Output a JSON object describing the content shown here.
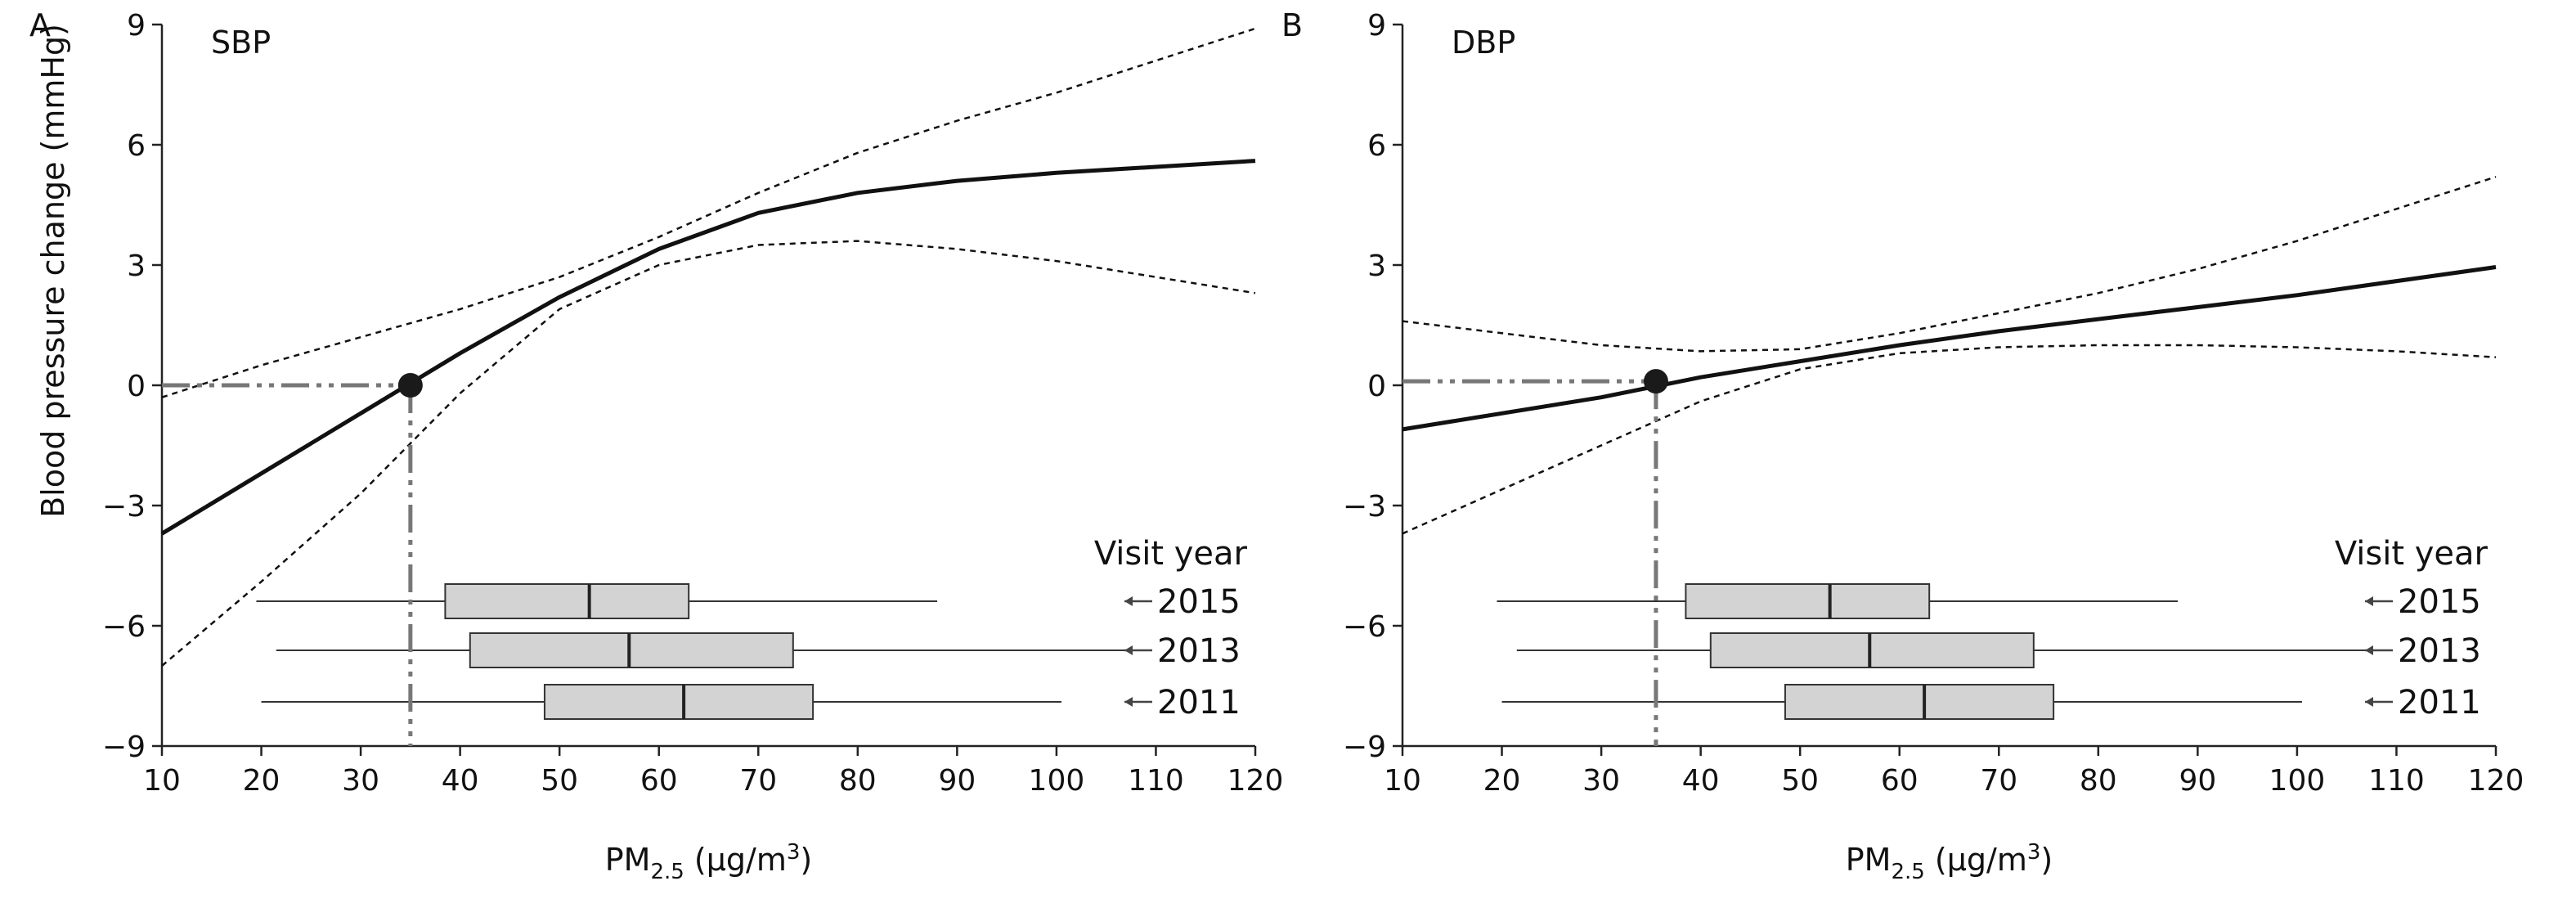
{
  "chart_data": [
    {
      "type": "line",
      "panel_label": "A",
      "title": "SBP",
      "xlabel": "PM",
      "xlabel_sub": "2.5",
      "xlabel_units": " (μg/m",
      "xlabel_sup": "3",
      "xlabel_close": ")",
      "ylabel": "Blood pressure change (mmHg)",
      "xlim": [
        10,
        120
      ],
      "ylim": [
        -9,
        9
      ],
      "x_ticks": [
        10,
        20,
        30,
        40,
        50,
        60,
        70,
        80,
        90,
        100,
        110,
        120
      ],
      "y_ticks": [
        9,
        6,
        3,
        0,
        -3,
        -6,
        -9
      ],
      "series": [
        {
          "role": "estimate",
          "style": "solid",
          "x": [
            10,
            20,
            30,
            40,
            50,
            60,
            70,
            80,
            90,
            100,
            110,
            120
          ],
          "y": [
            -3.7,
            -2.2,
            -0.7,
            0.8,
            2.2,
            3.4,
            4.3,
            4.8,
            5.1,
            5.3,
            5.45,
            5.6
          ]
        },
        {
          "role": "upper_ci",
          "style": "dashed",
          "x": [
            10,
            20,
            30,
            40,
            50,
            60,
            70,
            80,
            90,
            100,
            110,
            120
          ],
          "y": [
            -0.3,
            0.5,
            1.2,
            1.9,
            2.7,
            3.7,
            4.8,
            5.8,
            6.6,
            7.3,
            8.1,
            8.9
          ]
        },
        {
          "role": "lower_ci",
          "style": "dashed",
          "x": [
            10,
            20,
            30,
            40,
            50,
            60,
            70,
            80,
            90,
            100,
            110,
            120
          ],
          "y": [
            -7.0,
            -4.9,
            -2.7,
            -0.2,
            1.9,
            3.0,
            3.5,
            3.6,
            3.4,
            3.1,
            2.7,
            2.3
          ]
        }
      ],
      "reference_point": {
        "x": 35,
        "y": 0
      },
      "boxplot_legend_title": "Visit year",
      "boxplots": [
        {
          "year": "2015",
          "min": 19.5,
          "q1": 38.5,
          "median": 53,
          "q3": 63,
          "max": 88
        },
        {
          "year": "2013",
          "min": 21.5,
          "q1": 41,
          "median": 57,
          "q3": 73.5,
          "max": 108.5
        },
        {
          "year": "2011",
          "min": 20,
          "q1": 48.5,
          "median": 62.5,
          "q3": 75.5,
          "max": 100.5
        }
      ]
    },
    {
      "type": "line",
      "panel_label": "B",
      "title": "DBP",
      "xlabel": "PM",
      "xlabel_sub": "2.5",
      "xlabel_units": " (μg/m",
      "xlabel_sup": "3",
      "xlabel_close": ")",
      "ylabel": "",
      "xlim": [
        10,
        120
      ],
      "ylim": [
        -9,
        9
      ],
      "x_ticks": [
        10,
        20,
        30,
        40,
        50,
        60,
        70,
        80,
        90,
        100,
        110,
        120
      ],
      "y_ticks": [
        9,
        6,
        3,
        0,
        -3,
        -6,
        -9
      ],
      "series": [
        {
          "role": "estimate",
          "style": "solid",
          "x": [
            10,
            20,
            30,
            40,
            50,
            60,
            70,
            80,
            90,
            100,
            110,
            120
          ],
          "y": [
            -1.1,
            -0.7,
            -0.3,
            0.2,
            0.6,
            1.0,
            1.35,
            1.65,
            1.95,
            2.25,
            2.6,
            2.95
          ]
        },
        {
          "role": "upper_ci",
          "style": "dashed",
          "x": [
            10,
            20,
            30,
            40,
            50,
            60,
            70,
            80,
            90,
            100,
            110,
            120
          ],
          "y": [
            1.6,
            1.3,
            1.0,
            0.85,
            0.9,
            1.3,
            1.8,
            2.3,
            2.9,
            3.6,
            4.4,
            5.2
          ]
        },
        {
          "role": "lower_ci",
          "style": "dashed",
          "x": [
            10,
            20,
            30,
            40,
            50,
            60,
            70,
            80,
            90,
            100,
            110,
            120
          ],
          "y": [
            -3.7,
            -2.6,
            -1.5,
            -0.4,
            0.4,
            0.8,
            0.95,
            1.0,
            1.0,
            0.95,
            0.85,
            0.7
          ]
        }
      ],
      "reference_point": {
        "x": 35.5,
        "y": 0.1
      },
      "boxplot_legend_title": "Visit year",
      "boxplots": [
        {
          "year": "2015",
          "min": 19.5,
          "q1": 38.5,
          "median": 53,
          "q3": 63,
          "max": 88
        },
        {
          "year": "2013",
          "min": 21.5,
          "q1": 41,
          "median": 57,
          "q3": 73.5,
          "max": 108.5
        },
        {
          "year": "2011",
          "min": 20,
          "q1": 48.5,
          "median": 62.5,
          "q3": 75.5,
          "max": 100.5
        }
      ]
    }
  ]
}
